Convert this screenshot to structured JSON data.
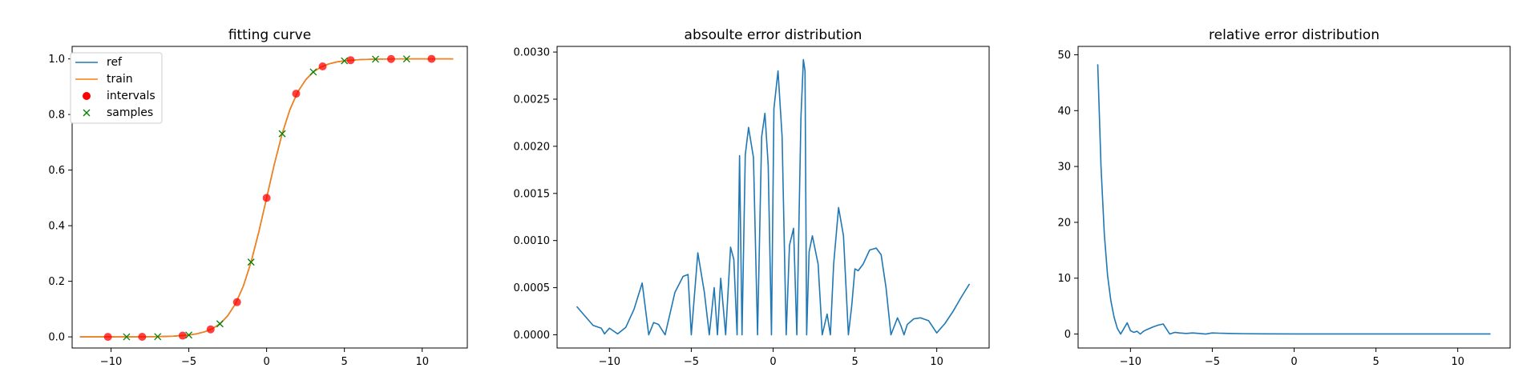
{
  "chart_data": [
    {
      "type": "line",
      "title": "fitting curve",
      "xlabel": "",
      "ylabel": "",
      "xlim": [
        -12.5,
        12.9
      ],
      "ylim": [
        -0.04,
        1.045
      ],
      "xticks": [
        -10,
        -5,
        0,
        5,
        10
      ],
      "yticks": [
        0.0,
        0.2,
        0.4,
        0.6,
        0.8,
        1.0
      ],
      "xtick_labels": [
        "−10",
        "−5",
        "0",
        "5",
        "10"
      ],
      "ytick_labels": [
        "0.0",
        "0.2",
        "0.4",
        "0.6",
        "0.8",
        "1.0"
      ],
      "legend_position": "top-left",
      "series": [
        {
          "name": "ref",
          "kind": "line",
          "color": "#1f77b4",
          "x": [
            -12,
            -11,
            -10,
            -9,
            -8,
            -7,
            -6,
            -5,
            -4.5,
            -4,
            -3.5,
            -3,
            -2.5,
            -2,
            -1.5,
            -1,
            -0.5,
            0,
            0.5,
            1,
            1.5,
            2,
            2.5,
            3,
            3.5,
            4,
            4.5,
            5,
            6,
            7,
            8,
            9,
            10,
            11,
            12
          ],
          "y": [
            0.0,
            0.0,
            0.0,
            0.0,
            0.0003,
            0.0009,
            0.0025,
            0.0067,
            0.011,
            0.018,
            0.029,
            0.047,
            0.076,
            0.119,
            0.182,
            0.269,
            0.378,
            0.5,
            0.622,
            0.731,
            0.818,
            0.881,
            0.924,
            0.953,
            0.971,
            0.982,
            0.989,
            0.993,
            0.9975,
            0.9991,
            0.9997,
            1.0,
            1.0,
            1.0,
            1.0
          ]
        },
        {
          "name": "train",
          "kind": "line",
          "color": "#ff7f0e",
          "x": [
            -12,
            -11,
            -10,
            -9,
            -8,
            -7,
            -6,
            -5,
            -4.5,
            -4,
            -3.5,
            -3,
            -2.5,
            -2,
            -1.5,
            -1,
            -0.5,
            0,
            0.5,
            1,
            1.5,
            2,
            2.5,
            3,
            3.5,
            4,
            4.5,
            5,
            6,
            7,
            8,
            9,
            10,
            11,
            12
          ],
          "y": [
            0.0,
            0.0,
            0.0,
            0.0,
            0.0003,
            0.0009,
            0.0025,
            0.0067,
            0.011,
            0.018,
            0.029,
            0.047,
            0.076,
            0.119,
            0.182,
            0.269,
            0.378,
            0.5,
            0.622,
            0.731,
            0.818,
            0.881,
            0.924,
            0.953,
            0.971,
            0.982,
            0.989,
            0.993,
            0.9975,
            0.9991,
            0.9997,
            1.0,
            1.0,
            1.0,
            1.0
          ]
        },
        {
          "name": "intervals",
          "kind": "points",
          "marker": "circle",
          "color": "#ff0000",
          "x": [
            -10.2,
            -8.0,
            -5.4,
            -3.6,
            -1.9,
            0.0,
            1.9,
            3.6,
            5.4,
            8.0,
            10.6
          ],
          "y": [
            0.0,
            0.0003,
            0.0045,
            0.027,
            0.125,
            0.5,
            0.875,
            0.973,
            0.9955,
            0.9997,
            1.0
          ]
        },
        {
          "name": "samples",
          "kind": "points",
          "marker": "x",
          "color": "#008000",
          "x": [
            -9.0,
            -7.0,
            -5.0,
            -3.0,
            -1.0,
            1.0,
            3.0,
            5.0,
            7.0,
            9.0
          ],
          "y": [
            0.0001,
            0.0009,
            0.0067,
            0.047,
            0.269,
            0.731,
            0.953,
            0.993,
            0.9991,
            0.9999
          ]
        }
      ]
    },
    {
      "type": "line",
      "title": "absoulte error distribution",
      "xlabel": "",
      "ylabel": "",
      "xlim": [
        -13.2,
        13.2
      ],
      "ylim": [
        -0.00014,
        0.00306
      ],
      "xticks": [
        -10,
        -5,
        0,
        5,
        10
      ],
      "yticks": [
        0.0,
        0.0005,
        0.001,
        0.0015,
        0.002,
        0.0025,
        0.003
      ],
      "xtick_labels": [
        "−10",
        "−5",
        "0",
        "5",
        "10"
      ],
      "ytick_labels": [
        "0.0000",
        "0.0005",
        "0.0010",
        "0.0015",
        "0.0020",
        "0.0025",
        "0.0030"
      ],
      "series": [
        {
          "color": "#1f77b4",
          "x": [
            -12.0,
            -11.0,
            -10.5,
            -10.3,
            -10.0,
            -9.5,
            -9.0,
            -8.5,
            -8.0,
            -7.6,
            -7.3,
            -7.0,
            -6.6,
            -6.0,
            -5.5,
            -5.2,
            -5.0,
            -4.6,
            -4.2,
            -3.9,
            -3.6,
            -3.4,
            -3.2,
            -2.9,
            -2.6,
            -2.4,
            -2.2,
            -2.05,
            -1.9,
            -1.7,
            -1.5,
            -1.2,
            -0.95,
            -0.7,
            -0.5,
            -0.3,
            -0.1,
            0.05,
            0.3,
            0.55,
            0.8,
            1.0,
            1.25,
            1.45,
            1.7,
            1.85,
            1.95,
            2.05,
            2.2,
            2.4,
            2.75,
            3.0,
            3.3,
            3.5,
            3.7,
            4.0,
            4.3,
            4.6,
            4.8,
            5.0,
            5.2,
            5.5,
            5.9,
            6.3,
            6.6,
            6.9,
            7.2,
            7.6,
            7.8,
            8.0,
            8.2,
            8.6,
            9.0,
            9.5,
            10.0,
            10.5,
            11.0,
            11.5,
            12.0
          ],
          "y": [
            0.0003,
            0.0001,
            7e-05,
            1e-05,
            7e-05,
            1e-05,
            8e-05,
            0.00027,
            0.00055,
            0.0,
            0.00013,
            0.00011,
            0.0,
            0.00045,
            0.00062,
            0.00064,
            0.0,
            0.00087,
            0.00045,
            0.0,
            0.0005,
            0.0,
            0.0006,
            0.0,
            0.00093,
            0.0008,
            0.0,
            0.0019,
            0.0,
            0.00191,
            0.0022,
            0.00188,
            0.0,
            0.0021,
            0.00235,
            0.0018,
            0.0,
            0.0024,
            0.0028,
            0.0021,
            0.0,
            0.00095,
            0.00113,
            0.0,
            0.0023,
            0.00292,
            0.0028,
            0.0,
            0.00088,
            0.00105,
            0.00075,
            0.0,
            0.00022,
            0.0,
            0.00075,
            0.00135,
            0.00105,
            0.0,
            0.0003,
            0.0007,
            0.00068,
            0.00075,
            0.0009,
            0.00092,
            0.00085,
            0.0005,
            0.0,
            0.00018,
            0.0001,
            0.0,
            0.00011,
            0.00017,
            0.00018,
            0.00015,
            2e-05,
            0.00012,
            0.00025,
            0.0004,
            0.00054
          ]
        }
      ]
    },
    {
      "type": "line",
      "title": "relative error distribution",
      "xlabel": "",
      "ylabel": "",
      "xlim": [
        -13.2,
        13.2
      ],
      "ylim": [
        -2.5,
        51.5
      ],
      "xticks": [
        -10,
        -5,
        0,
        5,
        10
      ],
      "yticks": [
        0,
        10,
        20,
        30,
        40,
        50
      ],
      "xtick_labels": [
        "−10",
        "−5",
        "0",
        "5",
        "10"
      ],
      "ytick_labels": [
        "0",
        "10",
        "20",
        "30",
        "40",
        "50"
      ],
      "series": [
        {
          "color": "#1f77b4",
          "x": [
            -12.0,
            -11.8,
            -11.6,
            -11.4,
            -11.2,
            -11.0,
            -10.8,
            -10.6,
            -10.4,
            -10.2,
            -10.0,
            -9.8,
            -9.6,
            -9.4,
            -9.2,
            -9.0,
            -8.6,
            -8.3,
            -8.0,
            -7.8,
            -7.6,
            -7.3,
            -7.0,
            -6.6,
            -6.2,
            -5.8,
            -5.4,
            -5.2,
            -5.0,
            -4.6,
            -4.0,
            -3.0,
            -2.0,
            0.0,
            2.0,
            5.0,
            8.0,
            10.0,
            12.0
          ],
          "y": [
            48.3,
            30.0,
            18.0,
            10.5,
            6.0,
            3.0,
            1.0,
            0.0,
            1.0,
            2.0,
            0.6,
            0.3,
            0.5,
            0.0,
            0.5,
            0.8,
            1.3,
            1.6,
            1.8,
            0.9,
            0.0,
            0.3,
            0.2,
            0.1,
            0.2,
            0.1,
            0.0,
            0.1,
            0.2,
            0.15,
            0.1,
            0.06,
            0.03,
            0.01,
            0.01,
            0.01,
            0.01,
            0.01,
            0.01
          ]
        }
      ]
    }
  ]
}
